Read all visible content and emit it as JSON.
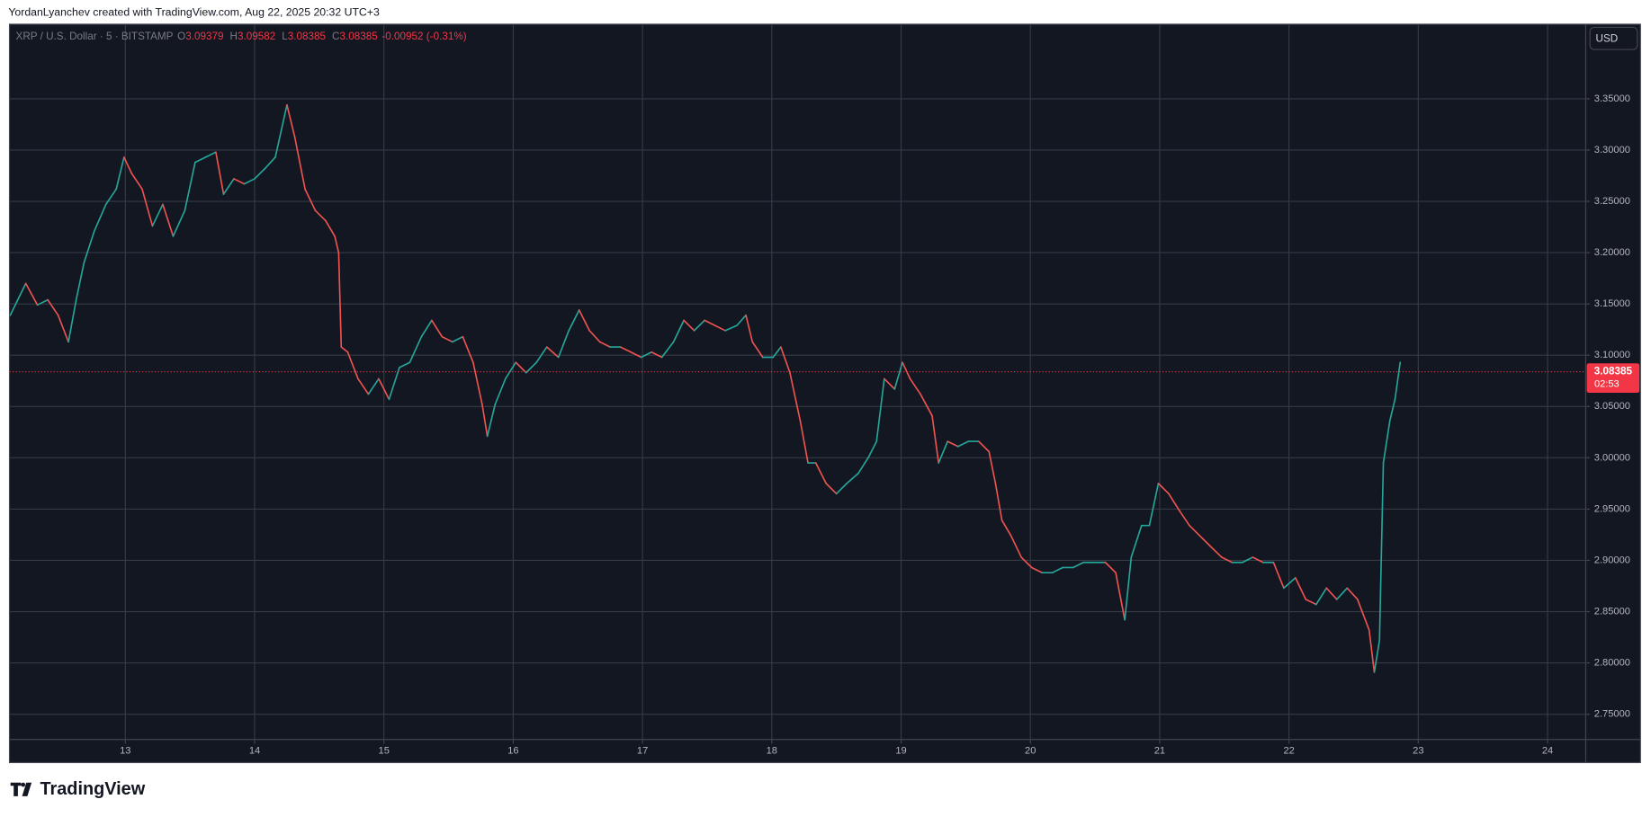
{
  "header": {
    "attribution": "YordanLyanchev created with TradingView.com, Aug 22, 2025 20:32 UTC+3"
  },
  "chart_data": {
    "type": "line",
    "title": "XRP / U.S. Dollar · 5 · BITSTAMP",
    "ohlc": [
      [
        "O",
        "3.09379"
      ],
      [
        "H",
        "3.09582"
      ],
      [
        "L",
        "3.08385"
      ],
      [
        "C",
        "3.08385"
      ]
    ],
    "change": "-0.00952 (-0.31%)",
    "currency": "USD",
    "last_price": 3.08385,
    "countdown": "02:53",
    "up_color": "#26a69a",
    "down_color": "#ef5350",
    "last_color": "#f23645",
    "grid": true,
    "x": [
      12.11,
      12.23,
      12.32,
      12.4,
      12.48,
      12.56,
      12.62,
      12.68,
      12.76,
      12.85,
      12.93,
      12.99,
      13.05,
      13.13,
      13.21,
      13.29,
      13.37,
      13.46,
      13.54,
      13.62,
      13.7,
      13.76,
      13.84,
      13.92,
      14.0,
      14.08,
      14.16,
      14.25,
      14.31,
      14.39,
      14.47,
      14.55,
      14.62,
      14.65,
      14.67,
      14.72,
      14.8,
      14.88,
      14.96,
      15.04,
      15.12,
      15.2,
      15.29,
      15.37,
      15.45,
      15.53,
      15.61,
      15.69,
      15.76,
      15.8,
      15.86,
      15.94,
      16.02,
      16.1,
      16.18,
      16.26,
      16.35,
      16.43,
      16.51,
      16.59,
      16.67,
      16.75,
      16.83,
      16.91,
      16.99,
      17.07,
      17.15,
      17.24,
      17.32,
      17.4,
      17.48,
      17.56,
      17.64,
      17.73,
      17.8,
      17.85,
      17.93,
      18.01,
      18.07,
      18.14,
      18.22,
      18.28,
      18.34,
      18.42,
      18.5,
      18.58,
      18.67,
      18.75,
      18.81,
      18.87,
      18.95,
      19.01,
      19.07,
      19.15,
      19.24,
      19.29,
      19.36,
      19.44,
      19.52,
      19.6,
      19.68,
      19.73,
      19.78,
      19.85,
      19.93,
      20.01,
      20.09,
      20.17,
      20.25,
      20.33,
      20.41,
      20.49,
      20.58,
      20.66,
      20.73,
      20.78,
      20.86,
      20.92,
      20.99,
      21.07,
      21.15,
      21.23,
      21.31,
      21.39,
      21.48,
      21.56,
      21.64,
      21.72,
      21.8,
      21.88,
      21.96,
      22.05,
      22.13,
      22.21,
      22.29,
      22.37,
      22.45,
      22.53,
      22.62,
      22.66,
      22.7,
      22.73,
      22.78,
      22.82,
      22.86
    ],
    "values": [
      3.139,
      3.17,
      3.149,
      3.154,
      3.139,
      3.113,
      3.154,
      3.19,
      3.221,
      3.247,
      3.262,
      3.293,
      3.277,
      3.262,
      3.226,
      3.247,
      3.216,
      3.241,
      3.288,
      3.293,
      3.298,
      3.257,
      3.272,
      3.267,
      3.272,
      3.282,
      3.293,
      3.344,
      3.313,
      3.262,
      3.241,
      3.231,
      3.216,
      3.2,
      3.108,
      3.103,
      3.077,
      3.062,
      3.077,
      3.057,
      3.088,
      3.093,
      3.118,
      3.134,
      3.118,
      3.113,
      3.118,
      3.093,
      3.052,
      3.021,
      3.052,
      3.077,
      3.093,
      3.083,
      3.093,
      3.108,
      3.098,
      3.124,
      3.144,
      3.124,
      3.113,
      3.108,
      3.108,
      3.103,
      3.098,
      3.103,
      3.098,
      3.113,
      3.134,
      3.124,
      3.134,
      3.129,
      3.124,
      3.129,
      3.139,
      3.113,
      3.098,
      3.098,
      3.108,
      3.083,
      3.036,
      2.995,
      2.995,
      2.975,
      2.965,
      2.975,
      2.985,
      3.001,
      3.016,
      3.077,
      3.067,
      3.093,
      3.077,
      3.062,
      3.041,
      2.995,
      3.016,
      3.011,
      3.016,
      3.016,
      3.006,
      2.975,
      2.939,
      2.924,
      2.903,
      2.893,
      2.888,
      2.888,
      2.893,
      2.893,
      2.898,
      2.898,
      2.898,
      2.888,
      2.842,
      2.903,
      2.934,
      2.934,
      2.975,
      2.965,
      2.949,
      2.934,
      2.924,
      2.914,
      2.903,
      2.898,
      2.898,
      2.903,
      2.898,
      2.898,
      2.873,
      2.883,
      2.862,
      2.857,
      2.873,
      2.862,
      2.873,
      2.862,
      2.832,
      2.791,
      2.822,
      2.995,
      3.036,
      3.057,
      3.093
    ],
    "xlim": [
      12.104,
      24.295
    ],
    "ylim": [
      2.7254,
      3.4227
    ],
    "xticks": [
      13,
      14,
      15,
      16,
      17,
      18,
      19,
      20,
      21,
      22,
      23,
      24
    ],
    "yticks": [
      {
        "value": 2.75,
        "label": "2.75000"
      },
      {
        "value": 2.8,
        "label": "2.80000"
      },
      {
        "value": 2.85,
        "label": "2.85000"
      },
      {
        "value": 2.9,
        "label": "2.90000"
      },
      {
        "value": 2.95,
        "label": "2.95000"
      },
      {
        "value": 3.0,
        "label": "3.00000"
      },
      {
        "value": 3.05,
        "label": "3.05000"
      },
      {
        "value": 3.1,
        "label": "3.10000"
      },
      {
        "value": 3.15,
        "label": "3.15000"
      },
      {
        "value": 3.2,
        "label": "3.20000"
      },
      {
        "value": 3.25,
        "label": "3.25000"
      },
      {
        "value": 3.3,
        "label": "3.30000"
      },
      {
        "value": 3.35,
        "label": "3.35000"
      }
    ]
  },
  "brand": "TradingView"
}
